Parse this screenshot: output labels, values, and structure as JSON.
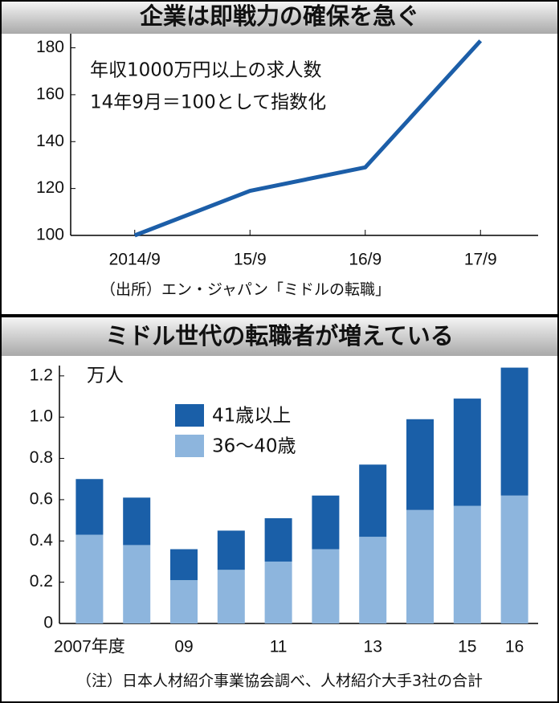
{
  "chart_data": [
    {
      "type": "line",
      "title": "企業は即戦力の確保を急ぐ",
      "annotations": [
        "年収1000万円以上の求人数",
        "14年9月＝100として指数化"
      ],
      "categories": [
        "2014/9",
        "15/9",
        "16/9",
        "17/9"
      ],
      "values": [
        100,
        119,
        129,
        183
      ],
      "color": "#1c5ea8",
      "ylim": [
        100,
        186
      ],
      "yticks": [
        100,
        120,
        140,
        160,
        180
      ],
      "grid": false,
      "source": "（出所）エン・ジャパン「ミドルの転職」"
    },
    {
      "type": "bar",
      "stacked": true,
      "title": "ミドル世代の転職者が増えている",
      "unit": "万人",
      "categories": [
        "2007年度",
        null,
        "09",
        null,
        "11",
        null,
        "13",
        null,
        "15",
        "16"
      ],
      "series": [
        {
          "name": "36～40歳",
          "color": "#8db5dd",
          "values": [
            0.43,
            0.38,
            0.21,
            0.26,
            0.3,
            0.36,
            0.42,
            0.55,
            0.57,
            0.62
          ]
        },
        {
          "name": "41歳以上",
          "color": "#1a5fa8",
          "values": [
            0.27,
            0.23,
            0.15,
            0.19,
            0.21,
            0.26,
            0.35,
            0.44,
            0.52,
            0.62
          ]
        }
      ],
      "ylim": [
        0,
        1.25
      ],
      "yticks": [
        0,
        0.2,
        0.4,
        0.6,
        0.8,
        {
          "value": 1,
          "label": "1.0"
        },
        1.2
      ],
      "grid": false,
      "legend": "upper-left",
      "note": "（注）日本人材紹介事業協会調べ、人材紹介大手3社の合計"
    }
  ]
}
